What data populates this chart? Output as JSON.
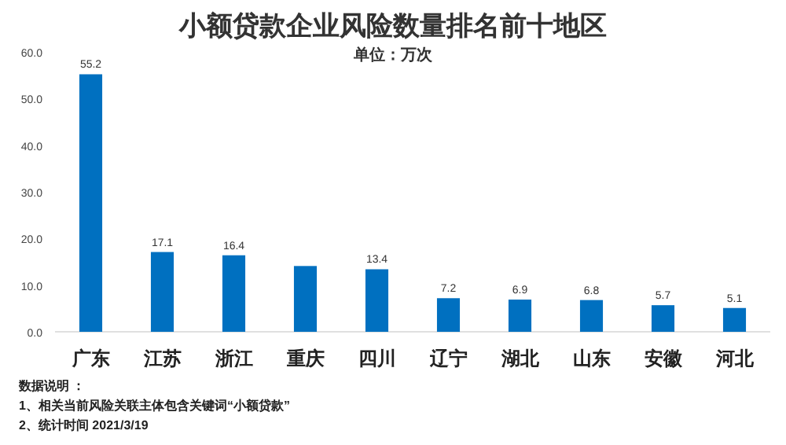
{
  "chart_data": {
    "type": "bar",
    "title": "小额贷款企业风险数量排名前十地区",
    "subtitle": "单位：万次",
    "categories": [
      "广东",
      "江苏",
      "浙江",
      "重庆",
      "四川",
      "辽宁",
      "湖北",
      "山东",
      "安徽",
      "河北"
    ],
    "values": [
      55.2,
      17.1,
      16.4,
      14.1,
      13.4,
      7.2,
      6.9,
      6.8,
      5.7,
      5.1
    ],
    "value_labels": [
      "55.2",
      "17.1",
      "16.4",
      null,
      "13.4",
      "7.2",
      "6.9",
      "6.8",
      "5.7",
      "5.1"
    ],
    "color": "#0070c0",
    "ylim": [
      0,
      60
    ],
    "yticks": [
      {
        "value": 0,
        "label": "0.0"
      },
      {
        "value": 10,
        "label": "10.0"
      },
      {
        "value": 20,
        "label": "20.0"
      },
      {
        "value": 30,
        "label": "30.0"
      },
      {
        "value": 40,
        "label": "40.0"
      },
      {
        "value": 50,
        "label": "50.0"
      },
      {
        "value": 60,
        "label": "60.0"
      }
    ],
    "grid": false,
    "annotations": [
      "数据说明 ：",
      "1、相关当前风险关联主体包含关键词“小额贷款”",
      "2、统计时间  2021/3/19"
    ]
  }
}
